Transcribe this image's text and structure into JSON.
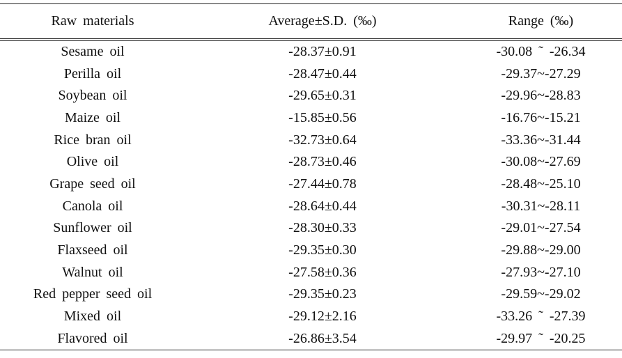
{
  "table": {
    "header": [
      "Raw materials",
      "Average±S.D. (‰)",
      "Range (‰)"
    ],
    "rows": [
      [
        "Sesame oil",
        "-28.37±0.91",
        "-30.08 ˜ -26.34"
      ],
      [
        "Perilla oil",
        "-28.47±0.44",
        "-29.37~-27.29"
      ],
      [
        "Soybean oil",
        "-29.65±0.31",
        "-29.96~-28.83"
      ],
      [
        "Maize oil",
        "-15.85±0.56",
        "-16.76~-15.21"
      ],
      [
        "Rice bran oil",
        "-32.73±0.64",
        "-33.36~-31.44"
      ],
      [
        "Olive oil",
        "-28.73±0.46",
        "-30.08~-27.69"
      ],
      [
        "Grape seed oil",
        "-27.44±0.78",
        "-28.48~-25.10"
      ],
      [
        "Canola oil",
        "-28.64±0.44",
        "-30.31~-28.11"
      ],
      [
        "Sunflower oil",
        "-28.30±0.33",
        "-29.01~-27.54"
      ],
      [
        "Flaxseed oil",
        "-29.35±0.30",
        "-29.88~-29.00"
      ],
      [
        "Walnut oil",
        "-27.58±0.36",
        "-27.93~-27.10"
      ],
      [
        "Red pepper seed oil",
        "-29.35±0.23",
        "-29.59~-29.02"
      ],
      [
        "Mixed oil",
        "-29.12±2.16",
        "-33.26 ˜ -27.39"
      ],
      [
        "Flavored oil",
        "-26.86±3.54",
        "-29.97 ˜ -20.25"
      ]
    ]
  }
}
